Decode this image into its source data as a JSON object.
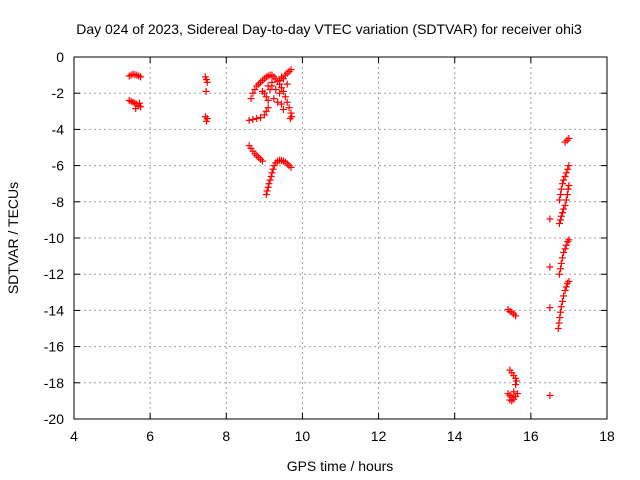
{
  "chart_data": {
    "type": "scatter",
    "title": "Day 024 of 2023, Sidereal Day-to-day VTEC variation (SDTVAR) for receiver ohi3",
    "xlabel": "GPS time / hours",
    "ylabel": "SDTVAR / TECUs",
    "xlim": [
      4,
      18
    ],
    "ylim": [
      -20,
      0
    ],
    "xticks": [
      "4",
      "6",
      "8",
      "10",
      "12",
      "14",
      "16",
      "18"
    ],
    "yticks": [
      "0",
      "-2",
      "-4",
      "-6",
      "-8",
      "-10",
      "-12",
      "-14",
      "-16",
      "-18",
      "-20"
    ],
    "grid": true,
    "marker": "+",
    "color": "#ff0000",
    "points": [
      [
        5.45,
        -1.05
      ],
      [
        5.5,
        -1.0
      ],
      [
        5.55,
        -0.95
      ],
      [
        5.6,
        -0.98
      ],
      [
        5.65,
        -1.0
      ],
      [
        5.7,
        -1.05
      ],
      [
        5.75,
        -1.1
      ],
      [
        5.45,
        -2.4
      ],
      [
        5.5,
        -2.45
      ],
      [
        5.55,
        -2.5
      ],
      [
        5.6,
        -2.55
      ],
      [
        5.65,
        -2.6
      ],
      [
        5.7,
        -2.7
      ],
      [
        5.75,
        -2.75
      ],
      [
        5.62,
        -2.85
      ],
      [
        5.72,
        -2.55
      ],
      [
        7.45,
        -1.1
      ],
      [
        7.48,
        -1.25
      ],
      [
        7.5,
        -1.4
      ],
      [
        7.47,
        -1.9
      ],
      [
        7.45,
        -3.3
      ],
      [
        7.5,
        -3.4
      ],
      [
        7.48,
        -3.55
      ],
      [
        8.6,
        -3.5
      ],
      [
        8.7,
        -3.45
      ],
      [
        8.8,
        -3.4
      ],
      [
        8.9,
        -3.35
      ],
      [
        9.0,
        -3.2
      ],
      [
        9.05,
        -3.0
      ],
      [
        9.1,
        -2.8
      ],
      [
        8.65,
        -2.3
      ],
      [
        8.7,
        -2.0
      ],
      [
        8.75,
        -1.8
      ],
      [
        8.8,
        -1.6
      ],
      [
        8.85,
        -1.5
      ],
      [
        8.9,
        -1.4
      ],
      [
        8.95,
        -1.3
      ],
      [
        9.0,
        -1.2
      ],
      [
        9.05,
        -1.1
      ],
      [
        9.1,
        -1.05
      ],
      [
        9.15,
        -1.0
      ],
      [
        9.2,
        -1.0
      ],
      [
        9.25,
        -1.1
      ],
      [
        9.3,
        -1.2
      ],
      [
        9.35,
        -1.35
      ],
      [
        9.4,
        -1.5
      ],
      [
        9.45,
        -1.7
      ],
      [
        9.5,
        -1.9
      ],
      [
        9.55,
        -2.2
      ],
      [
        9.6,
        -2.5
      ],
      [
        9.65,
        -2.8
      ],
      [
        9.7,
        -3.1
      ],
      [
        9.72,
        -3.3
      ],
      [
        9.68,
        -3.4
      ],
      [
        9.0,
        -2.0
      ],
      [
        9.05,
        -2.2
      ],
      [
        9.1,
        -2.4
      ],
      [
        8.95,
        -1.9
      ],
      [
        9.15,
        -1.8
      ],
      [
        9.2,
        -1.6
      ],
      [
        9.3,
        -1.8
      ],
      [
        9.4,
        -2.0
      ],
      [
        9.45,
        -2.6
      ],
      [
        9.5,
        -2.9
      ],
      [
        9.25,
        -2.3
      ],
      [
        9.35,
        -2.5
      ],
      [
        9.4,
        -1.3
      ],
      [
        9.5,
        -1.2
      ],
      [
        9.55,
        -1.0
      ],
      [
        9.6,
        -0.9
      ],
      [
        9.65,
        -0.8
      ],
      [
        9.7,
        -0.7
      ],
      [
        9.6,
        -1.5
      ],
      [
        9.45,
        -1.1
      ],
      [
        9.2,
        -1.4
      ],
      [
        9.1,
        -1.6
      ],
      [
        8.6,
        -4.9
      ],
      [
        8.65,
        -5.05
      ],
      [
        8.7,
        -5.2
      ],
      [
        8.75,
        -5.35
      ],
      [
        8.8,
        -5.45
      ],
      [
        8.85,
        -5.55
      ],
      [
        8.9,
        -5.65
      ],
      [
        8.95,
        -5.75
      ],
      [
        9.05,
        -7.6
      ],
      [
        9.07,
        -7.4
      ],
      [
        9.1,
        -7.2
      ],
      [
        9.12,
        -7.0
      ],
      [
        9.15,
        -6.8
      ],
      [
        9.18,
        -6.6
      ],
      [
        9.2,
        -6.4
      ],
      [
        9.23,
        -6.2
      ],
      [
        9.26,
        -6.0
      ],
      [
        9.3,
        -5.85
      ],
      [
        9.35,
        -5.75
      ],
      [
        9.4,
        -5.7
      ],
      [
        9.45,
        -5.72
      ],
      [
        9.5,
        -5.75
      ],
      [
        9.55,
        -5.8
      ],
      [
        9.6,
        -5.9
      ],
      [
        9.65,
        -6.0
      ],
      [
        9.7,
        -6.1
      ],
      [
        15.4,
        -13.95
      ],
      [
        15.45,
        -14.05
      ],
      [
        15.5,
        -14.1
      ],
      [
        15.55,
        -14.2
      ],
      [
        15.6,
        -14.3
      ],
      [
        15.45,
        -17.3
      ],
      [
        15.5,
        -17.45
      ],
      [
        15.55,
        -17.6
      ],
      [
        15.6,
        -17.75
      ],
      [
        15.62,
        -17.9
      ],
      [
        15.6,
        -18.1
      ],
      [
        15.4,
        -18.6
      ],
      [
        15.45,
        -18.7
      ],
      [
        15.5,
        -18.8
      ],
      [
        15.55,
        -18.9
      ],
      [
        15.6,
        -18.75
      ],
      [
        15.65,
        -18.6
      ],
      [
        15.5,
        -19.0
      ],
      [
        15.55,
        -18.5
      ],
      [
        15.45,
        -18.95
      ],
      [
        16.5,
        -8.95
      ],
      [
        16.5,
        -11.6
      ],
      [
        16.5,
        -13.85
      ],
      [
        16.5,
        -18.7
      ],
      [
        16.9,
        -4.7
      ],
      [
        16.95,
        -4.6
      ],
      [
        17.0,
        -4.5
      ],
      [
        16.75,
        -7.9
      ],
      [
        16.78,
        -7.6
      ],
      [
        16.8,
        -7.3
      ],
      [
        16.83,
        -7.0
      ],
      [
        16.86,
        -6.8
      ],
      [
        16.9,
        -6.6
      ],
      [
        16.93,
        -6.4
      ],
      [
        16.97,
        -6.2
      ],
      [
        17.0,
        -6.0
      ],
      [
        16.75,
        -9.2
      ],
      [
        16.78,
        -9.0
      ],
      [
        16.8,
        -8.8
      ],
      [
        16.83,
        -8.6
      ],
      [
        16.86,
        -8.4
      ],
      [
        16.9,
        -8.2
      ],
      [
        16.93,
        -7.9
      ],
      [
        16.96,
        -7.6
      ],
      [
        16.98,
        -7.3
      ],
      [
        17.0,
        -7.1
      ],
      [
        16.75,
        -12.0
      ],
      [
        16.78,
        -11.7
      ],
      [
        16.8,
        -11.4
      ],
      [
        16.83,
        -11.1
      ],
      [
        16.86,
        -10.8
      ],
      [
        16.9,
        -10.6
      ],
      [
        16.93,
        -10.4
      ],
      [
        16.97,
        -10.2
      ],
      [
        17.0,
        -10.1
      ],
      [
        16.72,
        -15.0
      ],
      [
        16.74,
        -14.7
      ],
      [
        16.76,
        -14.4
      ],
      [
        16.78,
        -14.1
      ],
      [
        16.8,
        -13.8
      ],
      [
        16.83,
        -13.5
      ],
      [
        16.86,
        -13.2
      ],
      [
        16.9,
        -12.9
      ],
      [
        16.93,
        -12.7
      ],
      [
        16.96,
        -12.5
      ],
      [
        17.0,
        -12.4
      ]
    ]
  }
}
